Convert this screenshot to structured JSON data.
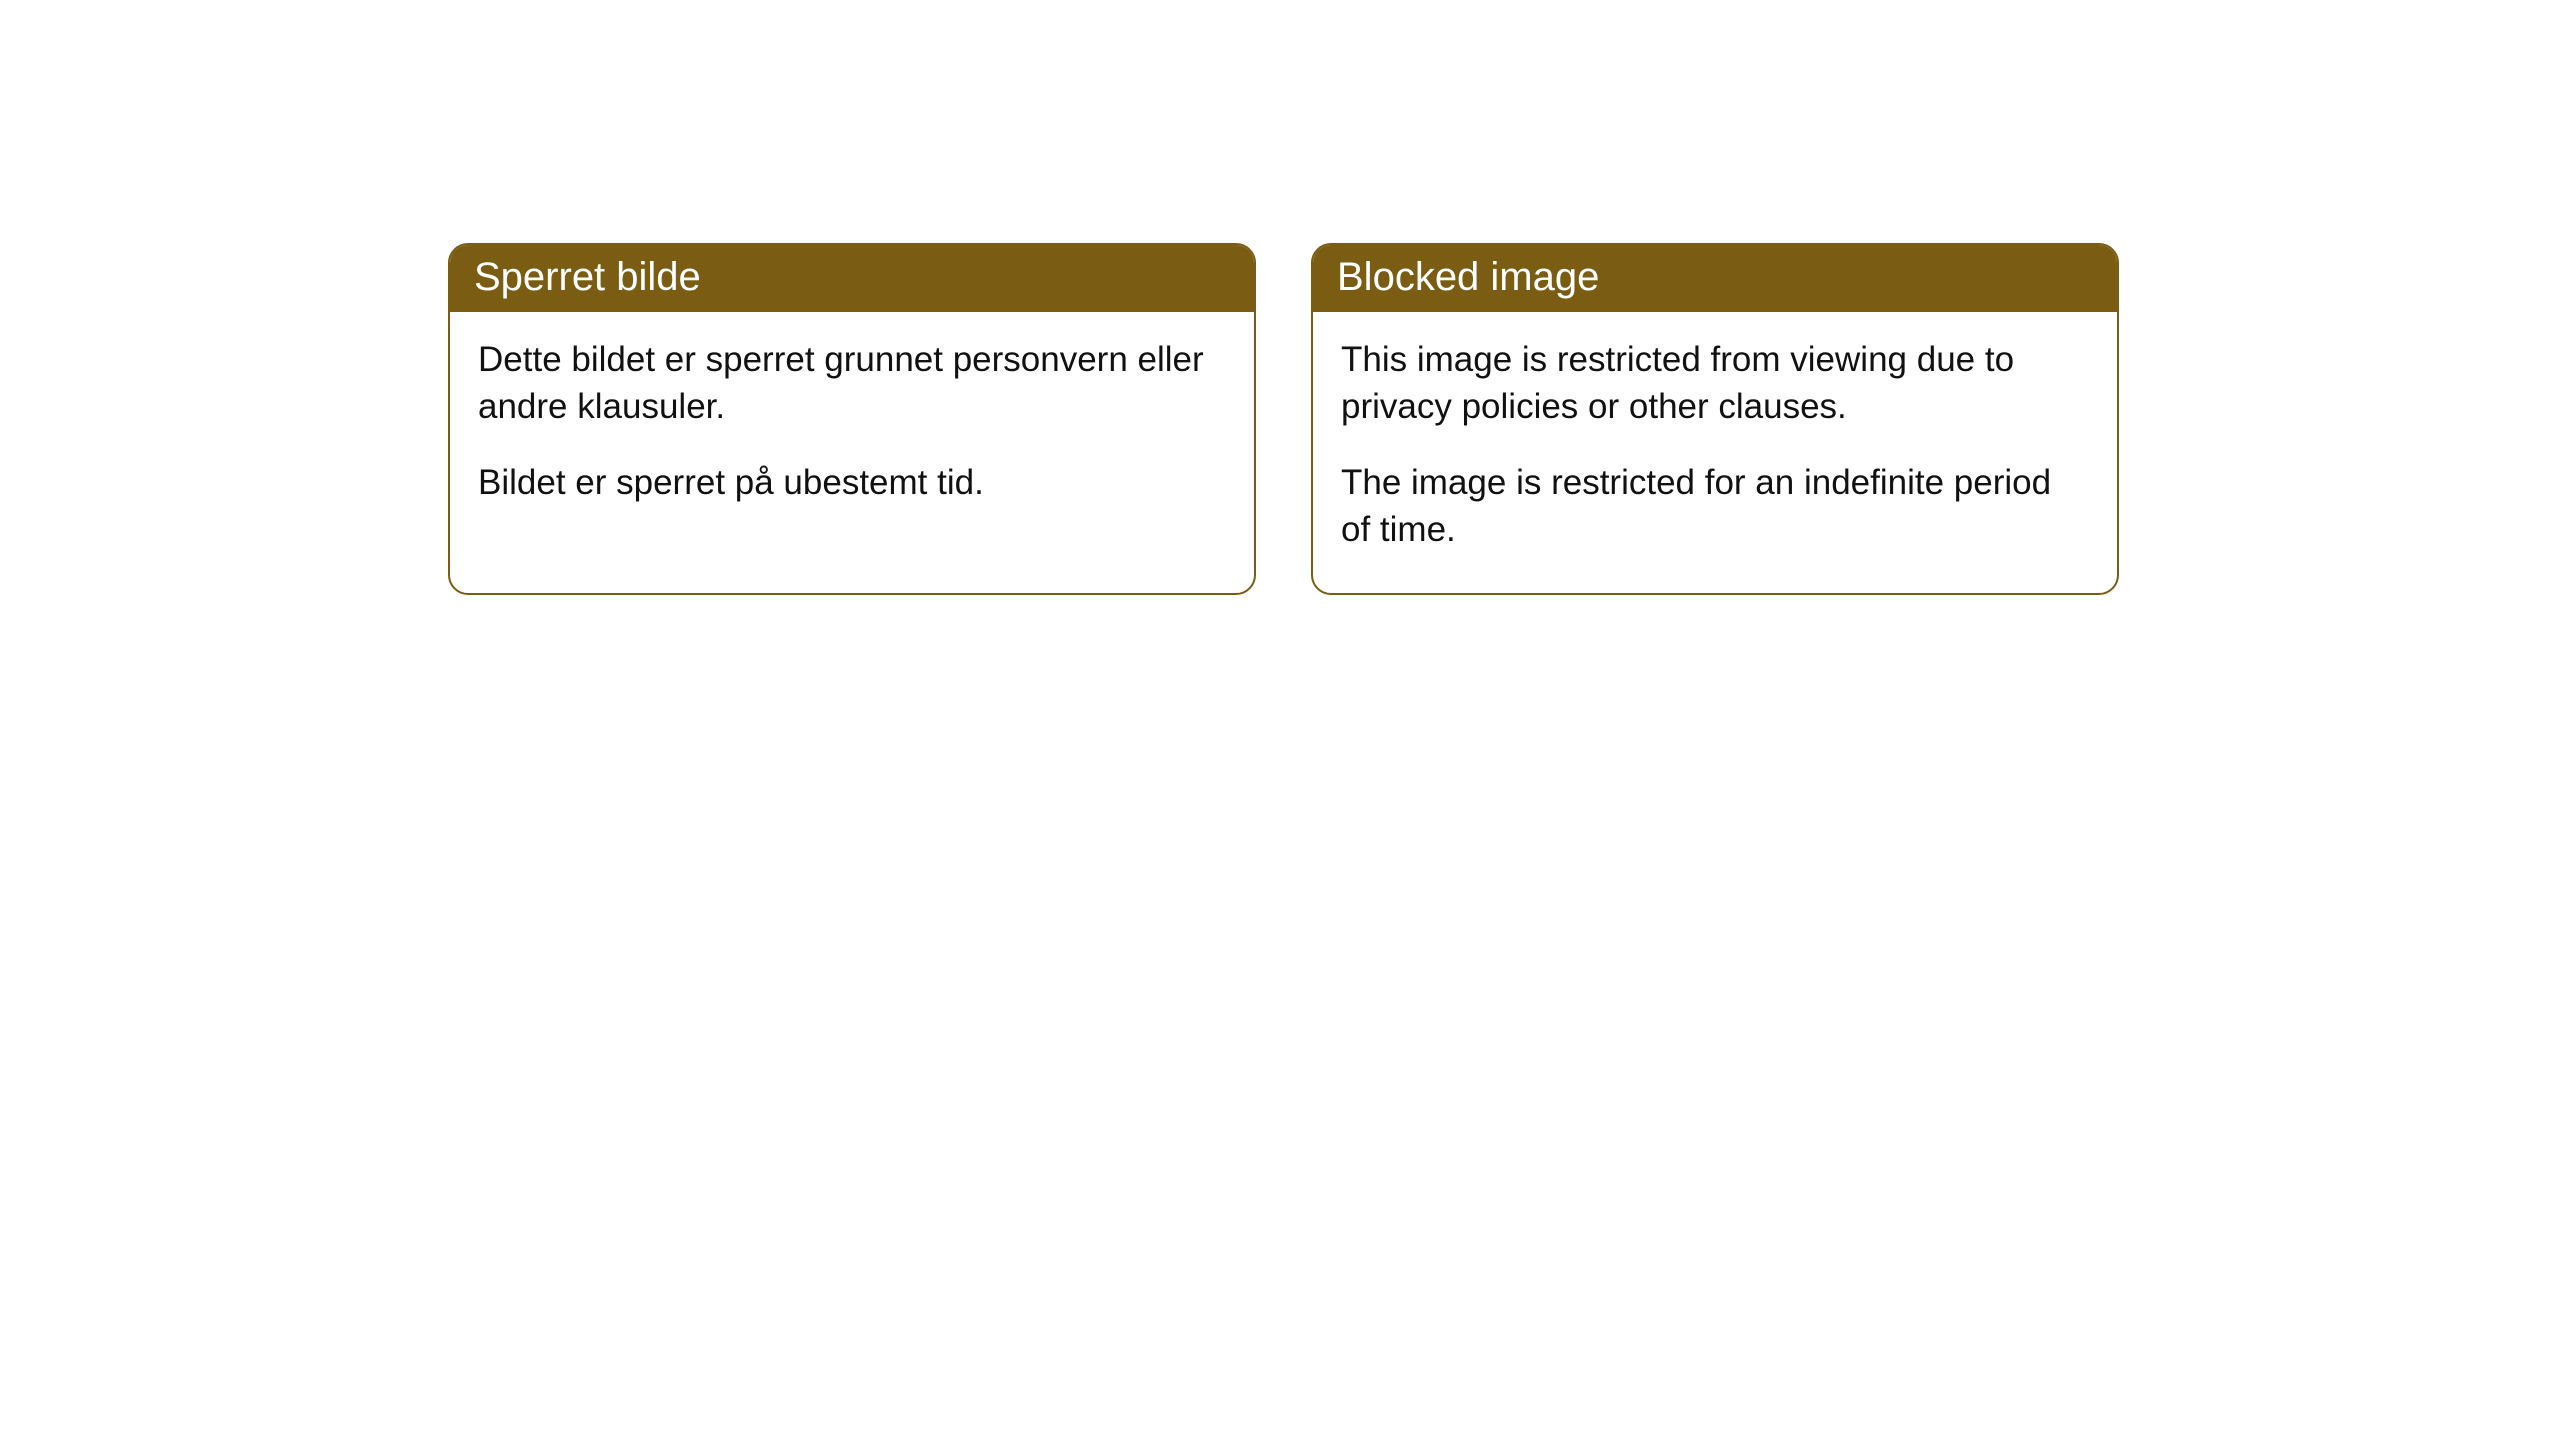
{
  "cards": [
    {
      "title": "Sperret bilde",
      "para1": "Dette bildet er sperret grunnet personvern eller andre klausuler.",
      "para2": "Bildet er sperret på ubestemt tid."
    },
    {
      "title": "Blocked image",
      "para1": "This image is restricted from viewing due to privacy policies or other clauses.",
      "para2": "The image is restricted for an indefinite period of time."
    }
  ],
  "style": {
    "header_bg": "#7a5c13",
    "header_text": "#ffffff",
    "border_color": "#7a5c13",
    "body_bg": "#ffffff",
    "body_text": "#111111",
    "border_radius": 20,
    "title_fontsize": 40,
    "body_fontsize": 35
  }
}
